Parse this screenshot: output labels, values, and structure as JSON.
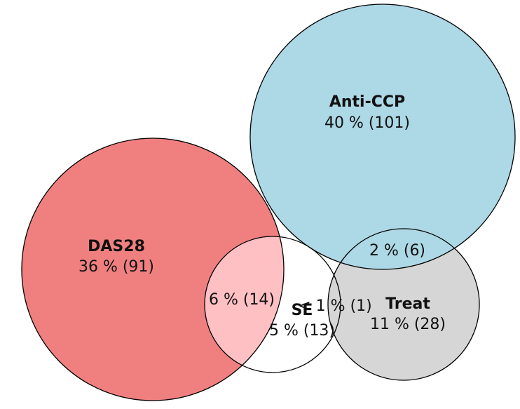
{
  "sets": [
    {
      "id": "das28",
      "name": "DAS28",
      "value": "36 % (91)",
      "color": "#f08080"
    },
    {
      "id": "anticcp",
      "name": "Anti-CCP",
      "value": "40 % (101)",
      "color": "#add8e6"
    },
    {
      "id": "se",
      "name": "SE",
      "value": "5 % (13)",
      "color": "#ffffff"
    },
    {
      "id": "treat",
      "name": "Treat",
      "value": "11 % (28)",
      "color": "#d6d6d6"
    }
  ],
  "overlaps": {
    "das28_se": {
      "value": "6 % (14)",
      "color": "#ffc0c4"
    },
    "anticcp_treat": {
      "value": "2 % (6)"
    },
    "se_treat": {
      "value": "< 1 % (1)"
    }
  }
}
